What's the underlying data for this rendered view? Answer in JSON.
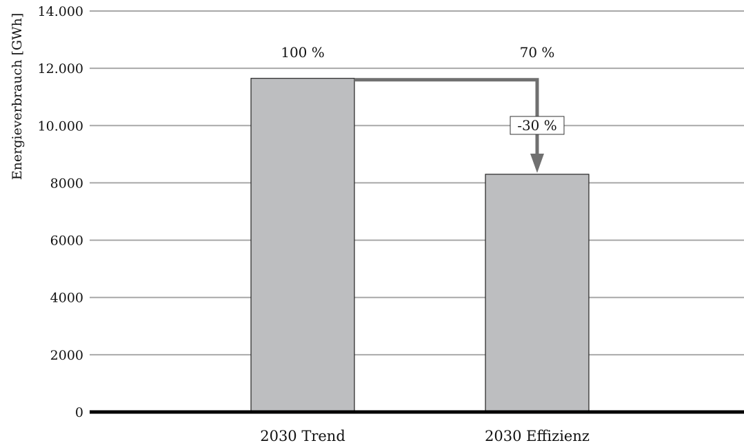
{
  "chart_data": {
    "type": "bar",
    "categories": [
      "2030 Trend",
      "2030 Effizienz"
    ],
    "values": [
      11650,
      8300
    ],
    "value_labels": [
      "100 %",
      "70 %"
    ],
    "ylabel": "Energieverbrauch [GWh]",
    "ylim": [
      0,
      14000
    ],
    "yticks": [
      0,
      2000,
      4000,
      6000,
      8000,
      10000,
      12000,
      14000
    ],
    "ytick_labels": [
      "0",
      "2000",
      "4000",
      "6000",
      "8000",
      "10.000",
      "12.000",
      "14.000"
    ],
    "grid": true,
    "legend": "none",
    "annotation": {
      "text": "-30 %",
      "from": "2030 Trend",
      "to": "2030 Effizienz"
    },
    "colors": {
      "bar": "#bdbec0",
      "bar_stroke": "#222222",
      "grid": "#a8a8a8",
      "axis": "#000000",
      "arrow": "#707070"
    }
  }
}
